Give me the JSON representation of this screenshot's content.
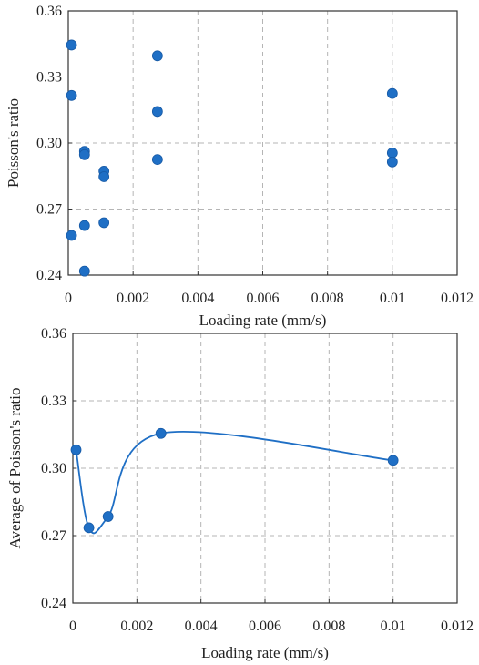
{
  "chart_data": [
    {
      "type": "scatter",
      "xlabel": "Loading rate (mm/s)",
      "ylabel": "Poisson's ratio",
      "xlim": [
        0,
        0.012
      ],
      "ylim": [
        0.24,
        0.36
      ],
      "x_ticks": [
        "0",
        "0.002",
        "0.004",
        "0.006",
        "0.008",
        "0.01",
        "0.012"
      ],
      "y_ticks": [
        "0.24",
        "0.27",
        "0.30",
        "0.33",
        "0.36"
      ],
      "x_tick_values": [
        0,
        0.002,
        0.004,
        0.006,
        0.008,
        0.01,
        0.012
      ],
      "y_tick_values": [
        0.24,
        0.27,
        0.3,
        0.33,
        0.36
      ],
      "grid": true,
      "color": "#1f6fc5",
      "series": [
        {
          "points": [
            [
              0.0001,
              0.3445
            ],
            [
              0.0001,
              0.3216
            ],
            [
              0.0001,
              0.258
            ],
            [
              0.0005,
              0.2962
            ],
            [
              0.0005,
              0.2947
            ],
            [
              0.0005,
              0.2625
            ],
            [
              0.0005,
              0.2418
            ],
            [
              0.0011,
              0.2872
            ],
            [
              0.0011,
              0.2847
            ],
            [
              0.0011,
              0.2638
            ],
            [
              0.00275,
              0.3396
            ],
            [
              0.00275,
              0.3143
            ],
            [
              0.00275,
              0.2925
            ],
            [
              0.01,
              0.3225
            ],
            [
              0.01,
              0.2955
            ],
            [
              0.01,
              0.2914
            ]
          ]
        }
      ]
    },
    {
      "type": "line",
      "xlabel": "Loading rate  (mm/s)",
      "ylabel": "Average of  Poisson's ratio",
      "xlim": [
        0,
        0.012
      ],
      "ylim": [
        0.24,
        0.36
      ],
      "x_ticks": [
        "0",
        "0.002",
        "0.004",
        "0.006",
        "0.008",
        "0.01",
        "0.012"
      ],
      "y_ticks": [
        "0.24",
        "0.27",
        "0.30",
        "0.33",
        "0.36"
      ],
      "x_tick_values": [
        0,
        0.002,
        0.004,
        0.006,
        0.008,
        0.01,
        0.012
      ],
      "y_tick_values": [
        0.24,
        0.27,
        0.3,
        0.33,
        0.36
      ],
      "grid": true,
      "smooth": true,
      "markers": true,
      "color": "#1f6fc5",
      "series": [
        {
          "points": [
            [
              0.0001,
              0.3082
            ],
            [
              0.0005,
              0.2735
            ],
            [
              0.0011,
              0.2785
            ],
            [
              0.00275,
              0.3155
            ],
            [
              0.01,
              0.3035
            ]
          ]
        }
      ]
    }
  ]
}
